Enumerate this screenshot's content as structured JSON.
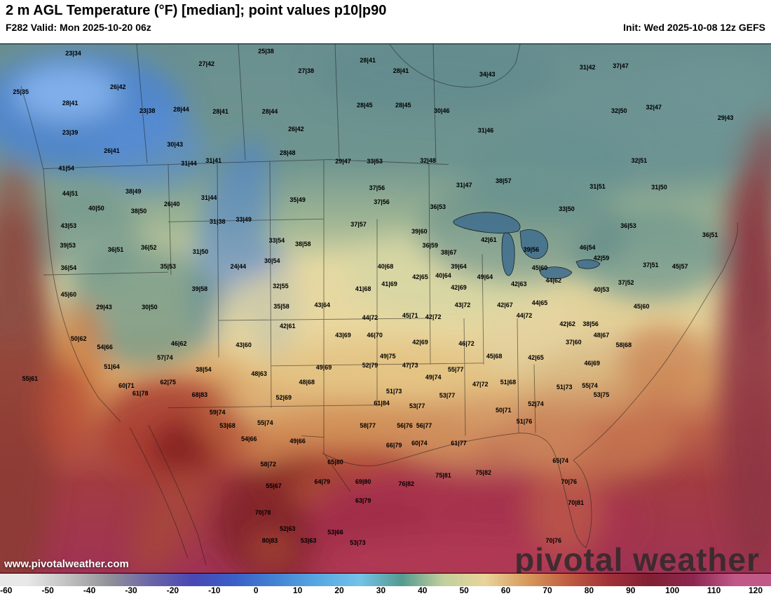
{
  "header": {
    "title": "2 m AGL Temperature (°F) [median]; point values p10|p90",
    "left_info": "F282 Valid: Mon 2025-10-20 06z",
    "right_info": "Init: Wed 2025-10-08 12z GEFS"
  },
  "map": {
    "watermark_url": "www.pivotalweather.com",
    "brand": "pivotal weather",
    "points": [
      {
        "x": 9.5,
        "y": 1.7,
        "v": "23|34"
      },
      {
        "x": 26.8,
        "y": 3.7,
        "v": "27|42"
      },
      {
        "x": 34.5,
        "y": 1.3,
        "v": "25|38"
      },
      {
        "x": 39.7,
        "y": 5.0,
        "v": "27|38"
      },
      {
        "x": 47.7,
        "y": 3.0,
        "v": "28|41"
      },
      {
        "x": 52.0,
        "y": 5.0,
        "v": "28|41"
      },
      {
        "x": 63.2,
        "y": 5.7,
        "v": "34|43"
      },
      {
        "x": 76.2,
        "y": 4.4,
        "v": "31|42"
      },
      {
        "x": 80.5,
        "y": 4.1,
        "v": "37|47"
      },
      {
        "x": 2.7,
        "y": 9.0,
        "v": "25|35"
      },
      {
        "x": 15.3,
        "y": 8.1,
        "v": "26|42"
      },
      {
        "x": 9.1,
        "y": 11.2,
        "v": "28|41"
      },
      {
        "x": 19.1,
        "y": 12.6,
        "v": "23|38"
      },
      {
        "x": 23.5,
        "y": 12.4,
        "v": "28|44"
      },
      {
        "x": 28.6,
        "y": 12.7,
        "v": "28|41"
      },
      {
        "x": 35.0,
        "y": 12.7,
        "v": "28|44"
      },
      {
        "x": 47.3,
        "y": 11.6,
        "v": "28|45"
      },
      {
        "x": 52.3,
        "y": 11.6,
        "v": "28|45"
      },
      {
        "x": 57.3,
        "y": 12.6,
        "v": "30|46"
      },
      {
        "x": 80.3,
        "y": 12.6,
        "v": "32|50"
      },
      {
        "x": 84.8,
        "y": 12.0,
        "v": "32|47"
      },
      {
        "x": 94.1,
        "y": 13.9,
        "v": "29|43"
      },
      {
        "x": 9.1,
        "y": 16.7,
        "v": "23|39"
      },
      {
        "x": 38.4,
        "y": 16.0,
        "v": "26|42"
      },
      {
        "x": 63.0,
        "y": 16.3,
        "v": "31|46"
      },
      {
        "x": 22.7,
        "y": 18.9,
        "v": "30|43"
      },
      {
        "x": 14.5,
        "y": 20.2,
        "v": "26|41"
      },
      {
        "x": 37.3,
        "y": 20.6,
        "v": "28|48"
      },
      {
        "x": 44.5,
        "y": 22.2,
        "v": "29|47"
      },
      {
        "x": 48.6,
        "y": 22.2,
        "v": "33|53"
      },
      {
        "x": 55.5,
        "y": 22.0,
        "v": "32|48"
      },
      {
        "x": 82.9,
        "y": 22.0,
        "v": "32|51"
      },
      {
        "x": 8.6,
        "y": 23.5,
        "v": "41|54"
      },
      {
        "x": 24.5,
        "y": 22.5,
        "v": "31|44"
      },
      {
        "x": 27.7,
        "y": 22.0,
        "v": "31|41"
      },
      {
        "x": 17.3,
        "y": 27.8,
        "v": "38|49"
      },
      {
        "x": 9.1,
        "y": 28.2,
        "v": "44|51"
      },
      {
        "x": 22.3,
        "y": 30.2,
        "v": "26|40"
      },
      {
        "x": 27.1,
        "y": 29.0,
        "v": "31|44"
      },
      {
        "x": 38.6,
        "y": 29.5,
        "v": "35|49"
      },
      {
        "x": 48.9,
        "y": 27.2,
        "v": "37|56"
      },
      {
        "x": 49.5,
        "y": 29.9,
        "v": "37|56"
      },
      {
        "x": 60.2,
        "y": 26.6,
        "v": "31|47"
      },
      {
        "x": 65.3,
        "y": 25.9,
        "v": "38|57"
      },
      {
        "x": 77.5,
        "y": 26.9,
        "v": "31|51"
      },
      {
        "x": 85.5,
        "y": 27.1,
        "v": "31|50"
      },
      {
        "x": 12.5,
        "y": 31.1,
        "v": "40|50"
      },
      {
        "x": 18.0,
        "y": 31.5,
        "v": "38|50"
      },
      {
        "x": 28.2,
        "y": 33.5,
        "v": "31|38"
      },
      {
        "x": 31.6,
        "y": 33.2,
        "v": "33|49"
      },
      {
        "x": 56.8,
        "y": 30.8,
        "v": "36|53"
      },
      {
        "x": 73.5,
        "y": 31.2,
        "v": "33|50"
      },
      {
        "x": 8.9,
        "y": 34.4,
        "v": "43|53"
      },
      {
        "x": 46.5,
        "y": 34.1,
        "v": "37|57"
      },
      {
        "x": 54.4,
        "y": 35.4,
        "v": "39|60"
      },
      {
        "x": 81.5,
        "y": 34.4,
        "v": "36|53"
      },
      {
        "x": 92.1,
        "y": 36.1,
        "v": "36|51"
      },
      {
        "x": 8.8,
        "y": 38.1,
        "v": "39|53"
      },
      {
        "x": 15.0,
        "y": 38.8,
        "v": "36|51"
      },
      {
        "x": 19.3,
        "y": 38.5,
        "v": "36|52"
      },
      {
        "x": 26.0,
        "y": 39.2,
        "v": "31|50"
      },
      {
        "x": 35.9,
        "y": 37.2,
        "v": "33|54"
      },
      {
        "x": 39.3,
        "y": 37.8,
        "v": "38|58"
      },
      {
        "x": 55.8,
        "y": 38.1,
        "v": "36|59"
      },
      {
        "x": 68.9,
        "y": 38.8,
        "v": "39|56"
      },
      {
        "x": 63.4,
        "y": 37.0,
        "v": "42|61"
      },
      {
        "x": 76.2,
        "y": 38.5,
        "v": "46|54"
      },
      {
        "x": 78.0,
        "y": 40.5,
        "v": "42|59"
      },
      {
        "x": 58.2,
        "y": 39.4,
        "v": "38|67"
      },
      {
        "x": 84.4,
        "y": 41.8,
        "v": "37|51"
      },
      {
        "x": 88.2,
        "y": 42.1,
        "v": "45|57"
      },
      {
        "x": 8.9,
        "y": 42.3,
        "v": "36|54"
      },
      {
        "x": 21.8,
        "y": 42.1,
        "v": "35|53"
      },
      {
        "x": 30.9,
        "y": 42.1,
        "v": "24|44"
      },
      {
        "x": 35.3,
        "y": 41.0,
        "v": "30|54"
      },
      {
        "x": 50.0,
        "y": 42.1,
        "v": "40|68"
      },
      {
        "x": 59.5,
        "y": 42.1,
        "v": "39|64"
      },
      {
        "x": 70.0,
        "y": 42.3,
        "v": "45|60"
      },
      {
        "x": 36.4,
        "y": 45.8,
        "v": "32|55"
      },
      {
        "x": 50.5,
        "y": 45.4,
        "v": "41|69"
      },
      {
        "x": 54.5,
        "y": 44.0,
        "v": "42|65"
      },
      {
        "x": 57.5,
        "y": 43.8,
        "v": "40|64"
      },
      {
        "x": 62.9,
        "y": 44.0,
        "v": "49|64"
      },
      {
        "x": 59.5,
        "y": 46.0,
        "v": "42|69"
      },
      {
        "x": 67.3,
        "y": 45.4,
        "v": "42|63"
      },
      {
        "x": 71.8,
        "y": 44.7,
        "v": "44|62"
      },
      {
        "x": 78.0,
        "y": 46.4,
        "v": "40|53"
      },
      {
        "x": 81.2,
        "y": 45.1,
        "v": "37|52"
      },
      {
        "x": 8.9,
        "y": 47.4,
        "v": "45|60"
      },
      {
        "x": 25.9,
        "y": 46.3,
        "v": "39|58"
      },
      {
        "x": 36.5,
        "y": 49.6,
        "v": "35|58"
      },
      {
        "x": 41.8,
        "y": 49.3,
        "v": "43|64"
      },
      {
        "x": 47.1,
        "y": 46.3,
        "v": "41|68"
      },
      {
        "x": 60.0,
        "y": 49.3,
        "v": "43|72"
      },
      {
        "x": 65.5,
        "y": 49.3,
        "v": "42|67"
      },
      {
        "x": 70.0,
        "y": 48.9,
        "v": "44|65"
      },
      {
        "x": 83.2,
        "y": 49.6,
        "v": "45|60"
      },
      {
        "x": 13.5,
        "y": 49.7,
        "v": "29|43"
      },
      {
        "x": 19.4,
        "y": 49.7,
        "v": "30|50"
      },
      {
        "x": 37.3,
        "y": 53.3,
        "v": "42|61"
      },
      {
        "x": 48.0,
        "y": 51.7,
        "v": "44|72"
      },
      {
        "x": 53.2,
        "y": 51.3,
        "v": "45|71"
      },
      {
        "x": 56.2,
        "y": 51.6,
        "v": "42|72"
      },
      {
        "x": 68.0,
        "y": 51.3,
        "v": "44|72"
      },
      {
        "x": 44.5,
        "y": 55.0,
        "v": "43|69"
      },
      {
        "x": 48.6,
        "y": 55.0,
        "v": "46|70"
      },
      {
        "x": 54.5,
        "y": 56.3,
        "v": "42|69"
      },
      {
        "x": 60.5,
        "y": 56.6,
        "v": "46|72"
      },
      {
        "x": 73.6,
        "y": 52.9,
        "v": "42|62"
      },
      {
        "x": 76.6,
        "y": 52.9,
        "v": "38|56"
      },
      {
        "x": 74.4,
        "y": 56.3,
        "v": "37|60"
      },
      {
        "x": 78.0,
        "y": 55.0,
        "v": "48|67"
      },
      {
        "x": 80.9,
        "y": 56.9,
        "v": "58|68"
      },
      {
        "x": 10.2,
        "y": 55.7,
        "v": "50|62"
      },
      {
        "x": 13.6,
        "y": 57.3,
        "v": "54|66"
      },
      {
        "x": 23.2,
        "y": 56.6,
        "v": "46|62"
      },
      {
        "x": 31.6,
        "y": 56.9,
        "v": "43|60"
      },
      {
        "x": 64.1,
        "y": 59.0,
        "v": "45|68"
      },
      {
        "x": 69.5,
        "y": 59.3,
        "v": "42|65"
      },
      {
        "x": 76.8,
        "y": 60.3,
        "v": "46|69"
      },
      {
        "x": 14.5,
        "y": 61.0,
        "v": "51|64"
      },
      {
        "x": 21.4,
        "y": 59.3,
        "v": "57|74"
      },
      {
        "x": 26.4,
        "y": 61.6,
        "v": "38|54"
      },
      {
        "x": 33.6,
        "y": 62.3,
        "v": "48|63"
      },
      {
        "x": 42.0,
        "y": 61.2,
        "v": "49|69"
      },
      {
        "x": 50.3,
        "y": 59.0,
        "v": "49|75"
      },
      {
        "x": 48.0,
        "y": 60.8,
        "v": "52|79"
      },
      {
        "x": 53.2,
        "y": 60.8,
        "v": "47|73"
      },
      {
        "x": 56.2,
        "y": 63.0,
        "v": "49|74"
      },
      {
        "x": 59.1,
        "y": 61.6,
        "v": "55|77"
      },
      {
        "x": 62.3,
        "y": 64.3,
        "v": "47|72"
      },
      {
        "x": 65.9,
        "y": 63.9,
        "v": "51|68"
      },
      {
        "x": 3.9,
        "y": 63.2,
        "v": "55|61"
      },
      {
        "x": 16.4,
        "y": 64.6,
        "v": "60|71"
      },
      {
        "x": 21.8,
        "y": 63.9,
        "v": "62|75"
      },
      {
        "x": 25.9,
        "y": 66.3,
        "v": "68|83"
      },
      {
        "x": 39.8,
        "y": 63.9,
        "v": "48|68"
      },
      {
        "x": 51.1,
        "y": 65.6,
        "v": "51|73"
      },
      {
        "x": 73.2,
        "y": 64.8,
        "v": "51|73"
      },
      {
        "x": 76.5,
        "y": 64.6,
        "v": "55|74"
      },
      {
        "x": 78.0,
        "y": 66.3,
        "v": "53|75"
      },
      {
        "x": 18.2,
        "y": 66.1,
        "v": "61|78"
      },
      {
        "x": 36.8,
        "y": 66.8,
        "v": "52|69"
      },
      {
        "x": 49.5,
        "y": 67.9,
        "v": "61|84"
      },
      {
        "x": 54.1,
        "y": 68.5,
        "v": "53|77"
      },
      {
        "x": 58.0,
        "y": 66.5,
        "v": "53|77"
      },
      {
        "x": 65.3,
        "y": 69.2,
        "v": "50|71"
      },
      {
        "x": 69.5,
        "y": 68.1,
        "v": "52|74"
      },
      {
        "x": 68.0,
        "y": 71.4,
        "v": "51|76"
      },
      {
        "x": 28.2,
        "y": 69.6,
        "v": "59|74"
      },
      {
        "x": 34.4,
        "y": 71.6,
        "v": "55|74"
      },
      {
        "x": 29.5,
        "y": 72.1,
        "v": "53|68"
      },
      {
        "x": 47.7,
        "y": 72.2,
        "v": "58|77"
      },
      {
        "x": 52.5,
        "y": 72.1,
        "v": "56|76"
      },
      {
        "x": 55.0,
        "y": 72.1,
        "v": "56|77"
      },
      {
        "x": 59.5,
        "y": 75.4,
        "v": "61|77"
      },
      {
        "x": 32.3,
        "y": 74.7,
        "v": "54|66"
      },
      {
        "x": 38.6,
        "y": 75.1,
        "v": "49|66"
      },
      {
        "x": 51.1,
        "y": 75.8,
        "v": "66|79"
      },
      {
        "x": 54.4,
        "y": 75.4,
        "v": "60|74"
      },
      {
        "x": 72.7,
        "y": 78.8,
        "v": "65|74"
      },
      {
        "x": 34.8,
        "y": 79.4,
        "v": "58|72"
      },
      {
        "x": 43.5,
        "y": 79.1,
        "v": "65|80"
      },
      {
        "x": 57.5,
        "y": 81.5,
        "v": "75|81"
      },
      {
        "x": 62.7,
        "y": 81.1,
        "v": "75|82"
      },
      {
        "x": 52.7,
        "y": 83.1,
        "v": "76|82"
      },
      {
        "x": 35.5,
        "y": 83.5,
        "v": "55|67"
      },
      {
        "x": 41.8,
        "y": 82.8,
        "v": "64|79"
      },
      {
        "x": 73.8,
        "y": 82.8,
        "v": "70|76"
      },
      {
        "x": 47.1,
        "y": 82.7,
        "v": "69|80"
      },
      {
        "x": 47.1,
        "y": 86.4,
        "v": "63|79"
      },
      {
        "x": 74.7,
        "y": 86.8,
        "v": "70|81"
      },
      {
        "x": 34.1,
        "y": 88.6,
        "v": "70|78"
      },
      {
        "x": 37.3,
        "y": 91.7,
        "v": "52|63"
      },
      {
        "x": 35.0,
        "y": 93.9,
        "v": "80|83"
      },
      {
        "x": 40.0,
        "y": 93.9,
        "v": "53|63"
      },
      {
        "x": 46.4,
        "y": 94.3,
        "v": "53|73"
      },
      {
        "x": 43.5,
        "y": 92.3,
        "v": "53|66"
      },
      {
        "x": 71.8,
        "y": 93.9,
        "v": "70|76"
      }
    ]
  },
  "colorbar": {
    "ticks": [
      "-60",
      "-50",
      "-40",
      "-30",
      "-20",
      "-10",
      "0",
      "10",
      "20",
      "30",
      "40",
      "50",
      "60",
      "70",
      "80",
      "90",
      "100",
      "110",
      "120"
    ],
    "band_colors": [
      "#e8e8e8",
      "#c0c0c0",
      "#909098",
      "#6a64a8",
      "#4848b4",
      "#3a60c8",
      "#4484d4",
      "#58a8e2",
      "#74c2e8",
      "#549a90",
      "#c2cf9c",
      "#e8d49a",
      "#d89a5c",
      "#c05c42",
      "#a03038",
      "#801f34",
      "#8c2850",
      "#c05888"
    ]
  }
}
